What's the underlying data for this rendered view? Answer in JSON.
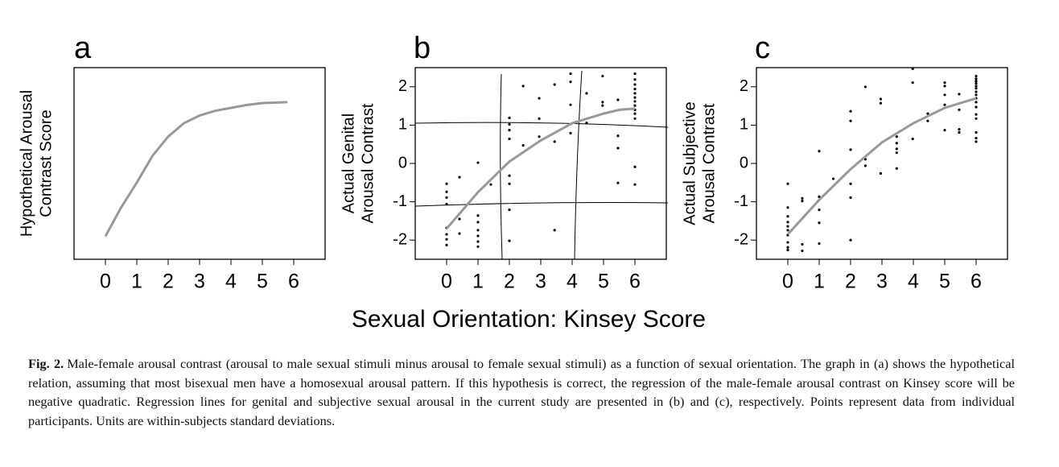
{
  "xlabel": "Sexual Orientation: Kinsey Score",
  "chart_data": [
    {
      "type": "line",
      "panel": "a",
      "ylabel": [
        "Hypothetical Arousal",
        "Contrast Score"
      ],
      "xlim": [
        -1,
        7
      ],
      "ylim": [
        0,
        10
      ],
      "xticks": [
        0,
        1,
        2,
        3,
        4,
        5,
        6
      ],
      "yticks": [],
      "series": [
        {
          "type": "line",
          "color": "#999999",
          "x": [
            0,
            0.5,
            1,
            1.5,
            2,
            2.5,
            3,
            3.5,
            4,
            4.5,
            5,
            5.8
          ],
          "values": [
            1.2,
            2.7,
            4.0,
            5.4,
            6.4,
            7.1,
            7.5,
            7.75,
            7.9,
            8.05,
            8.15,
            8.2
          ]
        }
      ]
    },
    {
      "type": "scatter",
      "panel": "b",
      "ylabel": [
        "Actual Genital",
        "Arousal Contrast"
      ],
      "xlim": [
        -1,
        7
      ],
      "ylim": [
        -2.5,
        2.5
      ],
      "xticks": [
        0,
        1,
        2,
        3,
        4,
        5,
        6
      ],
      "yticks": [
        -2,
        -1,
        0,
        1,
        2
      ],
      "series": [
        {
          "type": "scatter",
          "color": "#000000",
          "x": [
            0,
            0,
            0,
            0,
            0,
            0,
            0,
            0,
            0.41,
            0.41,
            0.41,
            1,
            1,
            1,
            1,
            1,
            1,
            1,
            1.41,
            2,
            2,
            2,
            2,
            2,
            2,
            2,
            2,
            2.44,
            2.44,
            2.95,
            2.95,
            2.95,
            3.44,
            3.44,
            3.44,
            3.95,
            3.95,
            3.95,
            3.95,
            4.46,
            4.46,
            4.97,
            4.97,
            4.97,
            5.46,
            5.46,
            5.46,
            5.46,
            6,
            6,
            6,
            6,
            6,
            6,
            6,
            6,
            6,
            6,
            6,
            6,
            6
          ],
          "values": [
            -0.53,
            -0.74,
            -0.89,
            -1.06,
            -1.68,
            -1.85,
            -1.98,
            -2.13,
            -0.36,
            -1.45,
            -1.83,
            0.02,
            -1.36,
            -1.53,
            -1.74,
            -1.89,
            -2.04,
            -2.17,
            -0.55,
            1.19,
            1.02,
            0.87,
            0.64,
            -0.32,
            -0.53,
            -1.21,
            -2.02,
            2.02,
            0.47,
            1.7,
            1.17,
            0.7,
            2.06,
            0.57,
            -1.74,
            2.34,
            2.13,
            1.53,
            0.79,
            1.83,
            1.06,
            2.28,
            1.6,
            1.51,
            1.66,
            0.72,
            0.4,
            -0.51,
            2.34,
            2.19,
            2.06,
            1.94,
            1.83,
            1.72,
            1.62,
            1.51,
            1.4,
            1.3,
            1.17,
            -0.09,
            -0.55
          ]
        },
        {
          "type": "line",
          "color": "#999999",
          "x": [
            0,
            1,
            2,
            3,
            4,
            5,
            5.5,
            6
          ],
          "values": [
            -1.7,
            -0.75,
            0.05,
            0.6,
            1.05,
            1.3,
            1.4,
            1.43
          ]
        }
      ]
    },
    {
      "type": "scatter",
      "panel": "c",
      "ylabel": [
        "Actual Subjective",
        "Arousal Contrast"
      ],
      "xlim": [
        -1,
        7
      ],
      "ylim": [
        -2.5,
        2.5
      ],
      "xticks": [
        0,
        1,
        2,
        3,
        4,
        5,
        6
      ],
      "yticks": [
        -2,
        -1,
        0,
        1,
        2
      ],
      "series": [
        {
          "type": "scatter",
          "color": "#000000",
          "x": [
            0,
            0,
            0,
            0,
            0,
            0,
            0,
            0,
            0,
            0,
            0.46,
            0.46,
            0.46,
            0.46,
            1,
            1,
            1,
            1,
            1,
            1.45,
            2,
            2,
            2,
            2,
            2,
            2,
            2.47,
            2.47,
            2.47,
            2.96,
            2.96,
            2.96,
            3.47,
            3.47,
            3.47,
            3.47,
            3.47,
            3.98,
            3.98,
            3.98,
            4.46,
            4.46,
            5,
            5,
            5,
            5,
            5,
            5.46,
            5.46,
            5.46,
            5.46,
            6,
            6,
            6,
            6,
            6,
            6,
            6,
            6,
            6,
            6,
            6,
            6,
            6,
            6,
            6,
            6
          ],
          "values": [
            -0.53,
            -1.15,
            -1.38,
            -1.53,
            -1.64,
            -1.74,
            -1.87,
            -2.06,
            -2.19,
            -2.26,
            -0.91,
            -0.98,
            -2.11,
            -2.28,
            0.32,
            -0.87,
            -1.21,
            -1.55,
            -2.09,
            -0.4,
            1.36,
            1.11,
            0.36,
            -0.53,
            -0.89,
            -2.0,
            2.0,
            0.11,
            -0.06,
            1.68,
            1.57,
            -0.26,
            0.7,
            0.53,
            0.38,
            0.28,
            -0.13,
            2.47,
            2.11,
            0.64,
            1.3,
            1.11,
            2.11,
            2.02,
            1.79,
            1.53,
            0.87,
            1.81,
            1.4,
            0.89,
            0.81,
            2.28,
            2.21,
            2.15,
            2.09,
            2.02,
            1.96,
            1.87,
            1.79,
            1.7,
            1.6,
            1.47,
            1.28,
            1.17,
            0.81,
            0.66,
            0.57
          ]
        },
        {
          "type": "line",
          "color": "#999999",
          "x": [
            0,
            1,
            2,
            3,
            4,
            5,
            6
          ],
          "values": [
            -1.85,
            -0.95,
            -0.15,
            0.55,
            1.05,
            1.45,
            1.7
          ]
        }
      ]
    }
  ],
  "caption": {
    "label": "Fig. 2.",
    "text": "Male-female arousal contrast (arousal to male sexual stimuli minus arousal to female sexual stimuli) as a function of sexual orientation. The graph in (a) shows the hypothetical relation, assuming that most bisexual men have a homosexual arousal pattern. If this hypothesis is correct, the regression of the male-female arousal contrast on Kinsey score will be negative quadratic. Regression lines for genital and subjective sexual arousal in the current study are presented in (b) and (c), respectively. Points represent data from individual participants. Units are within-subjects standard deviations."
  }
}
